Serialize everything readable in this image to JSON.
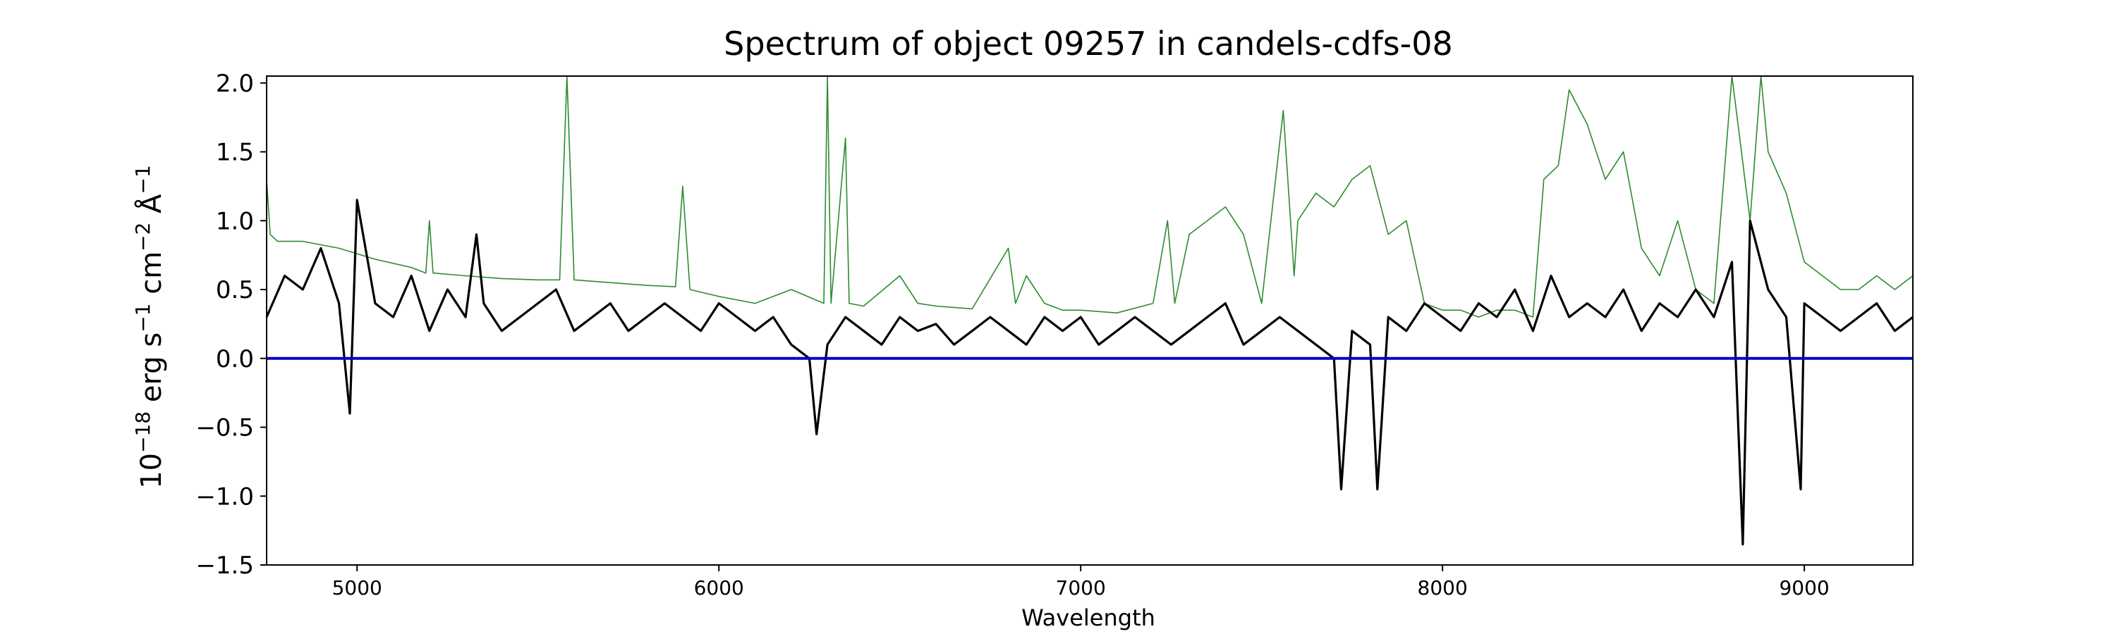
{
  "chart_data": {
    "type": "line",
    "title": "Spectrum of object 09257 in candels-cdfs-08",
    "xlabel": "Wavelength",
    "ylabel_parts": {
      "base": "10",
      "exp1": "−18",
      "mid1": " erg s",
      "exp2": "−1",
      "mid2": " cm",
      "exp3": "−2",
      "mid3": " Å",
      "exp4": "−1"
    },
    "xlim": [
      4750,
      9300
    ],
    "ylim": [
      -1.5,
      2.05
    ],
    "xticks": [
      5000,
      6000,
      7000,
      8000,
      9000
    ],
    "xtick_labels": [
      "5000",
      "6000",
      "7000",
      "8000",
      "9000"
    ],
    "yticks": [
      -1.5,
      -1.0,
      -0.5,
      0.0,
      0.5,
      1.0,
      1.5,
      2.0
    ],
    "ytick_labels": [
      "−1.5",
      "−1.0",
      "−0.5",
      "0.0",
      "0.5",
      "1.0",
      "1.5",
      "2.0"
    ],
    "grid": false,
    "zero_line": {
      "y": 0.0,
      "color": "#0000cc"
    },
    "series": [
      {
        "role": "flux",
        "color": "#000000",
        "x": [
          4750,
          4800,
          4850,
          4900,
          4950,
          4980,
          5000,
          5050,
          5100,
          5150,
          5200,
          5250,
          5300,
          5330,
          5350,
          5400,
          5450,
          5500,
          5550,
          5600,
          5650,
          5700,
          5750,
          5800,
          5850,
          5900,
          5950,
          6000,
          6050,
          6100,
          6150,
          6200,
          6250,
          6270,
          6300,
          6350,
          6400,
          6450,
          6500,
          6550,
          6600,
          6650,
          6700,
          6750,
          6800,
          6850,
          6900,
          6950,
          7000,
          7050,
          7100,
          7150,
          7200,
          7250,
          7300,
          7350,
          7400,
          7450,
          7500,
          7550,
          7600,
          7650,
          7700,
          7720,
          7750,
          7800,
          7820,
          7850,
          7900,
          7950,
          8000,
          8050,
          8100,
          8150,
          8200,
          8250,
          8300,
          8350,
          8400,
          8450,
          8500,
          8550,
          8600,
          8650,
          8700,
          8750,
          8800,
          8830,
          8850,
          8900,
          8950,
          8990,
          9000,
          9050,
          9100,
          9150,
          9200,
          9250,
          9300
        ],
        "y": [
          0.3,
          0.6,
          0.5,
          0.8,
          0.4,
          -0.4,
          1.15,
          0.4,
          0.3,
          0.6,
          0.2,
          0.5,
          0.3,
          0.9,
          0.4,
          0.2,
          0.3,
          0.4,
          0.5,
          0.2,
          0.3,
          0.4,
          0.2,
          0.3,
          0.4,
          0.3,
          0.2,
          0.4,
          0.3,
          0.2,
          0.3,
          0.1,
          0.0,
          -0.55,
          0.1,
          0.3,
          0.2,
          0.1,
          0.3,
          0.2,
          0.25,
          0.1,
          0.2,
          0.3,
          0.2,
          0.1,
          0.3,
          0.2,
          0.3,
          0.1,
          0.2,
          0.3,
          0.2,
          0.1,
          0.2,
          0.3,
          0.4,
          0.1,
          0.2,
          0.3,
          0.2,
          0.1,
          0.0,
          -0.95,
          0.2,
          0.1,
          -0.95,
          0.3,
          0.2,
          0.4,
          0.3,
          0.2,
          0.4,
          0.3,
          0.5,
          0.2,
          0.6,
          0.3,
          0.4,
          0.3,
          0.5,
          0.2,
          0.4,
          0.3,
          0.5,
          0.3,
          0.7,
          -1.35,
          1.0,
          0.5,
          0.3,
          -0.95,
          0.4,
          0.3,
          0.2,
          0.3,
          0.4,
          0.2,
          0.3
        ]
      },
      {
        "role": "error",
        "color": "#2e8b2e",
        "x": [
          4750,
          4760,
          4780,
          4850,
          4950,
          5050,
          5150,
          5190,
          5200,
          5210,
          5300,
          5400,
          5500,
          5560,
          5580,
          5600,
          5700,
          5800,
          5880,
          5900,
          5920,
          6000,
          6100,
          6200,
          6290,
          6300,
          6310,
          6350,
          6360,
          6400,
          6500,
          6550,
          6600,
          6700,
          6800,
          6820,
          6850,
          6900,
          6950,
          7000,
          7100,
          7200,
          7240,
          7260,
          7300,
          7350,
          7400,
          7450,
          7500,
          7560,
          7590,
          7600,
          7650,
          7700,
          7750,
          7800,
          7850,
          7900,
          7950,
          8000,
          8050,
          8100,
          8150,
          8200,
          8250,
          8280,
          8320,
          8350,
          8400,
          8450,
          8500,
          8550,
          8600,
          8650,
          8700,
          8750,
          8800,
          8850,
          8880,
          8900,
          8950,
          9000,
          9050,
          9100,
          9150,
          9200,
          9250,
          9300
        ],
        "y": [
          1.3,
          0.9,
          0.85,
          0.85,
          0.8,
          0.72,
          0.66,
          0.62,
          1.0,
          0.62,
          0.6,
          0.58,
          0.57,
          0.57,
          2.05,
          0.57,
          0.55,
          0.53,
          0.52,
          1.25,
          0.5,
          0.45,
          0.4,
          0.5,
          0.4,
          2.05,
          0.4,
          1.6,
          0.4,
          0.38,
          0.6,
          0.4,
          0.38,
          0.36,
          0.8,
          0.4,
          0.6,
          0.4,
          0.35,
          0.35,
          0.33,
          0.4,
          1.0,
          0.4,
          0.9,
          1.0,
          1.1,
          0.9,
          0.4,
          1.8,
          0.6,
          1.0,
          1.2,
          1.1,
          1.3,
          1.4,
          0.9,
          1.0,
          0.4,
          0.35,
          0.35,
          0.3,
          0.35,
          0.35,
          0.3,
          1.3,
          1.4,
          1.95,
          1.7,
          1.3,
          1.5,
          0.8,
          0.6,
          1.0,
          0.5,
          0.4,
          2.05,
          1.0,
          2.05,
          1.5,
          1.2,
          0.7,
          0.6,
          0.5,
          0.5,
          0.6,
          0.5,
          0.6
        ]
      }
    ]
  }
}
